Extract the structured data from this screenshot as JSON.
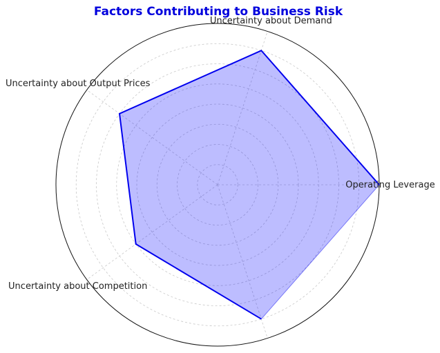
{
  "chart_data": {
    "type": "radar",
    "title": "Factors Contributing to Business Risk",
    "categories": [
      "Operating Leverage",
      "Uncertainty about Demand",
      "Uncertainty about Output Prices",
      "Uncertainty about Competition",
      ""
    ],
    "series": [
      {
        "values": [
          8,
          7,
          6,
          5,
          7
        ]
      }
    ],
    "rlim": [
      0,
      8
    ],
    "ring_count": 8,
    "grid": true,
    "colors": {
      "line": "#0000ee",
      "fill": "#0000ff",
      "title": "#0000dd"
    }
  }
}
